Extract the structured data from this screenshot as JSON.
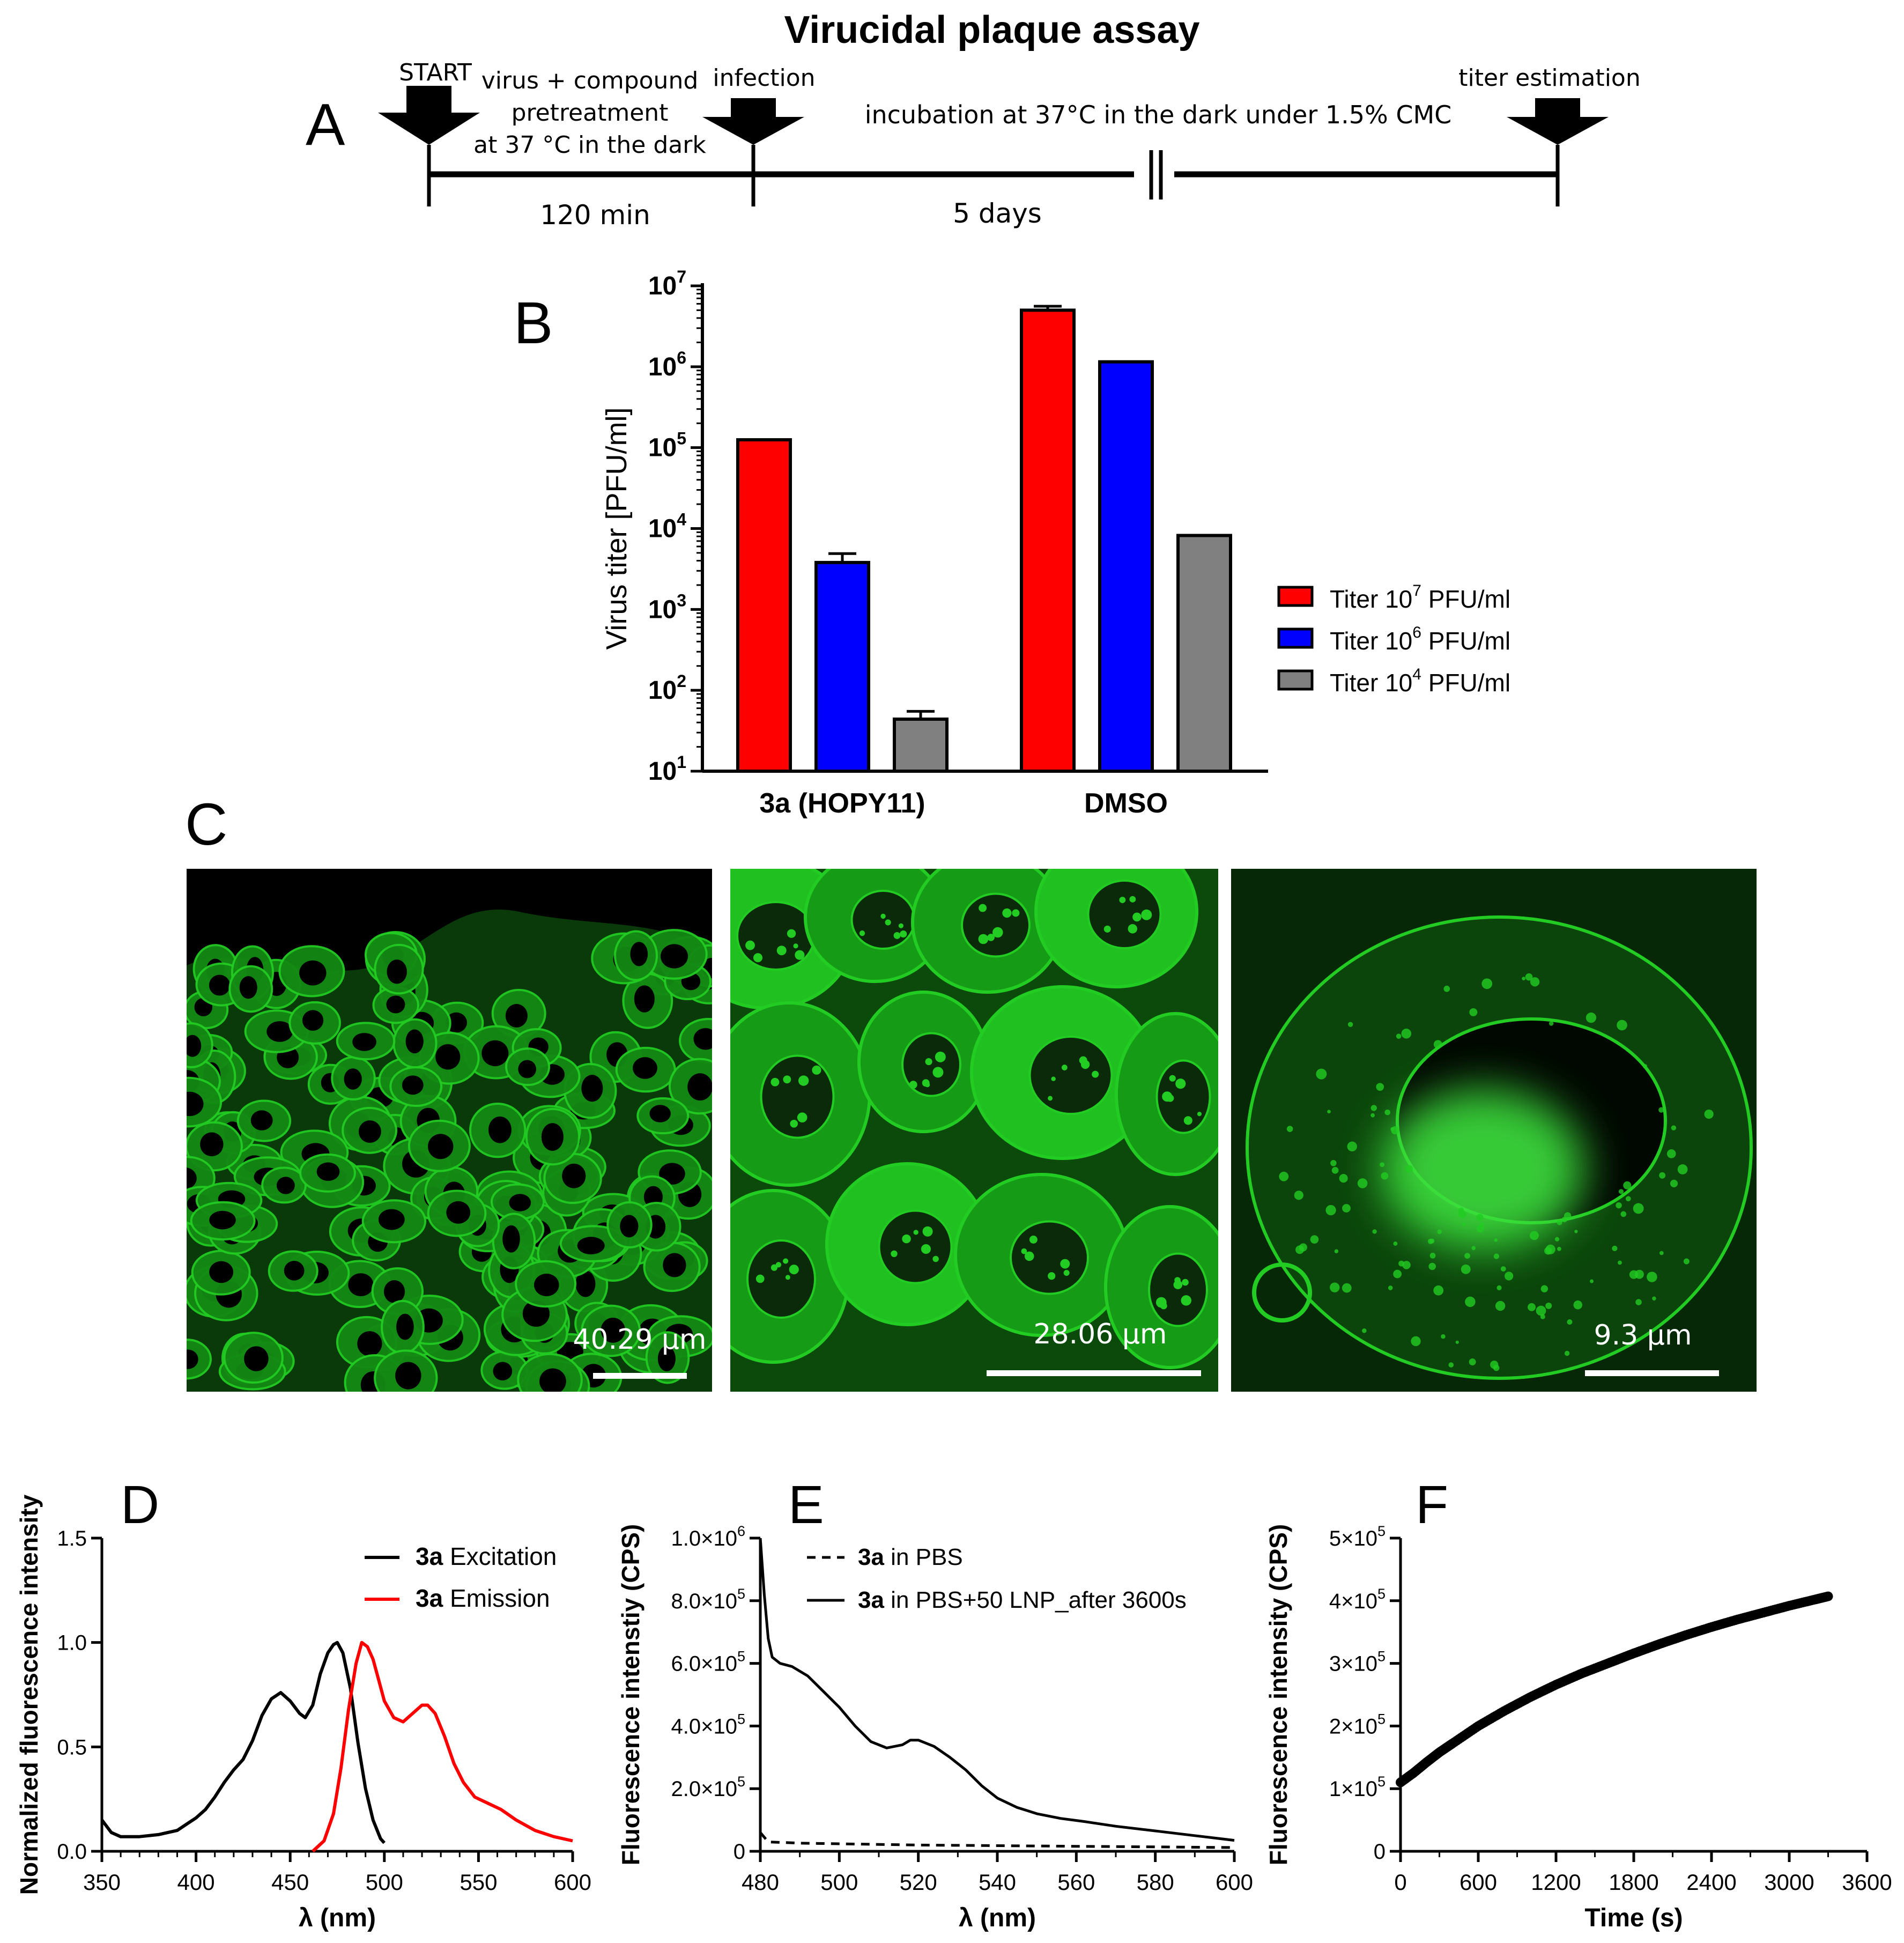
{
  "title": "Virucidal plaque assay",
  "panel_labels": {
    "a": "A",
    "b": "B",
    "c": "C",
    "d": "D",
    "e": "E",
    "f": "F"
  },
  "timeline": {
    "steps": [
      {
        "label": "START"
      },
      {
        "label_lines": [
          "virus + compound",
          "pretreatment",
          "at 37 °C in the dark"
        ]
      },
      {
        "label": "infection"
      },
      {
        "label": "incubation at 37°C in the dark under 1.5% CMC"
      },
      {
        "label": "titer estimation"
      }
    ],
    "durations": [
      "120 min",
      "5 days"
    ]
  },
  "micrographs": [
    {
      "scale_label": "40.29 µm"
    },
    {
      "scale_label": "28.06 µm"
    },
    {
      "scale_label": "9.3 µm"
    }
  ],
  "colors": {
    "red": "#ff0000",
    "blue": "#0000ff",
    "gray": "#808080",
    "micro_green": "#22cc22"
  },
  "chart_data": [
    {
      "panel": "B",
      "type": "bar",
      "scale": "log",
      "ylabel": "Virus titer [PFU/ml]",
      "ylim": [
        10,
        10000000
      ],
      "yticks": [
        {
          "v": 10,
          "base": "10",
          "exp": "1"
        },
        {
          "v": 100,
          "base": "10",
          "exp": "2"
        },
        {
          "v": 1000,
          "base": "10",
          "exp": "3"
        },
        {
          "v": 10000,
          "base": "10",
          "exp": "4"
        },
        {
          "v": 100000,
          "base": "10",
          "exp": "5"
        },
        {
          "v": 1000000,
          "base": "10",
          "exp": "6"
        },
        {
          "v": 10000000,
          "base": "10",
          "exp": "7"
        }
      ],
      "categories": [
        "3a (HOPY11)",
        "DMSO"
      ],
      "series": [
        {
          "legend_pre": "Titer 10",
          "legend_exp": "7",
          "legend_post": " PFU/ml",
          "color": "#ff0000",
          "values": [
            125000,
            5000000
          ],
          "errors": [
            0,
            600000
          ]
        },
        {
          "legend_pre": "Titer 10",
          "legend_exp": "6",
          "legend_post": " PFU/ml",
          "color": "#0000ff",
          "values": [
            3800,
            1150000
          ],
          "errors": [
            1100,
            0
          ]
        },
        {
          "legend_pre": "Titer 10",
          "legend_exp": "4",
          "legend_post": " PFU/ml",
          "color": "#808080",
          "values": [
            44,
            8200
          ],
          "errors": [
            11,
            0
          ]
        }
      ],
      "legend_position": "right"
    },
    {
      "panel": "D",
      "type": "line",
      "xlabel": "λ (nm)",
      "ylabel": "Normalized fluorescence intensity",
      "xlim": [
        350,
        600
      ],
      "ylim": [
        0,
        1.5
      ],
      "xticks": [
        "350",
        "400",
        "450",
        "500",
        "550",
        "600"
      ],
      "xtick_values": [
        350,
        400,
        450,
        500,
        550,
        600
      ],
      "yticks": [
        "0.0",
        "0.5",
        "1.0",
        "1.5"
      ],
      "ytick_values": [
        0,
        0.5,
        1.0,
        1.5
      ],
      "series": [
        {
          "legend_bold": "3a",
          "legend_rest": " Excitation",
          "color": "#000000",
          "x": [
            350,
            355,
            360,
            370,
            380,
            390,
            395,
            400,
            405,
            410,
            415,
            420,
            425,
            430,
            435,
            440,
            445,
            450,
            455,
            458,
            462,
            466,
            470,
            473,
            475,
            478,
            482,
            486,
            490,
            494,
            498,
            500
          ],
          "y": [
            0.15,
            0.09,
            0.07,
            0.07,
            0.08,
            0.1,
            0.13,
            0.16,
            0.2,
            0.26,
            0.33,
            0.39,
            0.44,
            0.53,
            0.65,
            0.73,
            0.76,
            0.72,
            0.66,
            0.64,
            0.7,
            0.85,
            0.95,
            0.99,
            1.0,
            0.95,
            0.78,
            0.52,
            0.3,
            0.15,
            0.06,
            0.04
          ]
        },
        {
          "legend_bold": "3a",
          "legend_rest": " Emission",
          "color": "#ff0000",
          "x": [
            462,
            468,
            473,
            477,
            481,
            485,
            488,
            491,
            494,
            497,
            500,
            505,
            510,
            515,
            520,
            523,
            527,
            532,
            537,
            542,
            548,
            555,
            562,
            570,
            580,
            590,
            600
          ],
          "y": [
            0.0,
            0.05,
            0.18,
            0.4,
            0.68,
            0.9,
            1.0,
            0.98,
            0.92,
            0.82,
            0.72,
            0.64,
            0.62,
            0.66,
            0.7,
            0.7,
            0.66,
            0.55,
            0.42,
            0.33,
            0.26,
            0.23,
            0.2,
            0.15,
            0.1,
            0.07,
            0.05
          ]
        }
      ]
    },
    {
      "panel": "E",
      "type": "line",
      "xlabel": "λ (nm)",
      "ylabel": "Fluorescence intenstiy (CPS)",
      "xlim": [
        480,
        600
      ],
      "ylim": [
        0,
        1000000
      ],
      "xticks": [
        "480",
        "500",
        "520",
        "540",
        "560",
        "580",
        "600"
      ],
      "xtick_values": [
        480,
        500,
        520,
        540,
        560,
        580,
        600
      ],
      "yticks": [
        {
          "v": 0,
          "text": "0",
          "exp": ""
        },
        {
          "v": 200000,
          "text": "2.0×10",
          "exp": "5"
        },
        {
          "v": 400000,
          "text": "4.0×10",
          "exp": "5"
        },
        {
          "v": 600000,
          "text": "6.0×10",
          "exp": "5"
        },
        {
          "v": 800000,
          "text": "8.0×10",
          "exp": "5"
        },
        {
          "v": 1000000,
          "text": "1.0×10",
          "exp": "6"
        }
      ],
      "series": [
        {
          "legend_bold": "3a",
          "legend_rest": " in PBS",
          "dashed": true,
          "color": "#000000",
          "x": [
            480,
            482,
            490,
            500,
            520,
            540,
            560,
            580,
            600
          ],
          "y": [
            60000,
            30000,
            26000,
            24000,
            20000,
            18000,
            16000,
            14000,
            12000
          ]
        },
        {
          "legend_bold": "3a",
          "legend_rest": " in PBS+50 LNP_after 3600s",
          "dashed": false,
          "color": "#000000",
          "x": [
            480,
            481,
            482,
            483,
            485,
            488,
            492,
            496,
            500,
            504,
            508,
            512,
            516,
            518,
            520,
            524,
            528,
            532,
            536,
            540,
            545,
            550,
            556,
            562,
            570,
            580,
            590,
            600
          ],
          "y": [
            1000000,
            820000,
            680000,
            620000,
            600000,
            590000,
            560000,
            510000,
            460000,
            400000,
            350000,
            330000,
            340000,
            355000,
            355000,
            335000,
            300000,
            260000,
            210000,
            170000,
            140000,
            120000,
            105000,
            95000,
            80000,
            65000,
            50000,
            35000
          ]
        }
      ]
    },
    {
      "panel": "F",
      "type": "scatter",
      "xlabel": "Time (s)",
      "ylabel": "Fluorescence intensity (CPS)",
      "xlim": [
        0,
        3600
      ],
      "ylim": [
        0,
        500000
      ],
      "xticks": [
        "0",
        "600",
        "1200",
        "1800",
        "2400",
        "3000",
        "3600"
      ],
      "xtick_values": [
        0,
        600,
        1200,
        1800,
        2400,
        3000,
        3600
      ],
      "yticks": [
        {
          "v": 0,
          "text": "0",
          "exp": ""
        },
        {
          "v": 100000,
          "text": "1×10",
          "exp": "5"
        },
        {
          "v": 200000,
          "text": "2×10",
          "exp": "5"
        },
        {
          "v": 300000,
          "text": "3×10",
          "exp": "5"
        },
        {
          "v": 400000,
          "text": "4×10",
          "exp": "5"
        },
        {
          "v": 500000,
          "text": "5×10",
          "exp": "5"
        }
      ],
      "series": [
        {
          "color": "#000000",
          "x": [
            0,
            100,
            200,
            300,
            400,
            600,
            800,
            1000,
            1200,
            1400,
            1600,
            1800,
            2000,
            2200,
            2400,
            2600,
            2800,
            3000,
            3200,
            3300
          ],
          "y": [
            110000,
            125000,
            142000,
            158000,
            172000,
            200000,
            224000,
            246000,
            266000,
            284000,
            300000,
            316000,
            331000,
            345000,
            358000,
            370000,
            381000,
            392000,
            402000,
            407000
          ]
        }
      ]
    }
  ]
}
